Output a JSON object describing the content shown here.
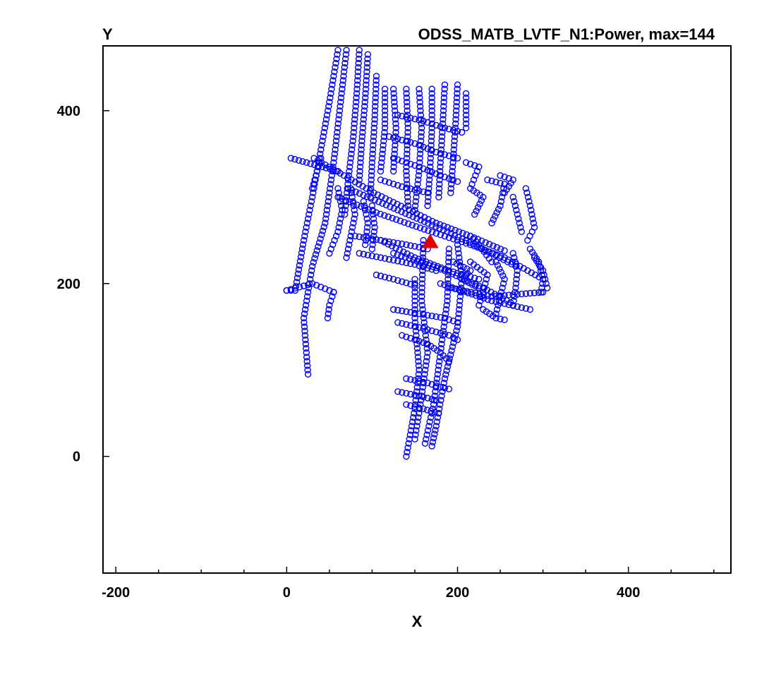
{
  "chart_data": {
    "type": "scatter",
    "title": "ODSS_MATB_LVTF_N1:Power, max=144",
    "xlabel": "X",
    "ylabel": "Y",
    "xlim": [
      -215,
      520
    ],
    "ylim": [
      -135,
      475
    ],
    "x_ticks": [
      {
        "value": -200,
        "label": "-200"
      },
      {
        "value": 0,
        "label": "0"
      },
      {
        "value": 200,
        "label": "200"
      },
      {
        "value": 400,
        "label": "400"
      }
    ],
    "y_ticks": [
      {
        "value": 0,
        "label": "0"
      },
      {
        "value": 200,
        "label": "200"
      },
      {
        "value": 400,
        "label": "400"
      }
    ],
    "x_minor_step": 50,
    "grid": false,
    "node_color": "#0000ff",
    "source_color": "#e00000",
    "source": {
      "name": "source",
      "x": 168,
      "y": 248
    },
    "series": [
      {
        "name": "nodes",
        "lines": [
          [
            [
              32,
              345
            ],
            [
              102,
              305
            ],
            [
              175,
              270
            ],
            [
              215,
              255
            ],
            [
              255,
              238
            ]
          ],
          [
            [
              60,
              300
            ],
            [
              105,
              282
            ],
            [
              175,
              258
            ],
            [
              215,
              245
            ],
            [
              255,
              230
            ],
            [
              300,
              205
            ]
          ],
          [
            [
              72,
              310
            ],
            [
              130,
              285
            ],
            [
              188,
              260
            ],
            [
              240,
              235
            ],
            [
              268,
              220
            ]
          ],
          [
            [
              180,
              200
            ],
            [
              240,
              180
            ],
            [
              285,
              170
            ]
          ],
          [
            [
              192,
              195
            ],
            [
              240,
              185
            ],
            [
              300,
              190
            ]
          ],
          [
            [
              200,
              245
            ],
            [
              205,
              205
            ],
            [
              200,
              150
            ],
            [
              185,
              90
            ],
            [
              175,
              35
            ],
            [
              170,
              12
            ]
          ],
          [
            [
              190,
              240
            ],
            [
              188,
              180
            ],
            [
              180,
              120
            ],
            [
              172,
              60
            ],
            [
              162,
              15
            ]
          ],
          [
            [
              150,
              205
            ],
            [
              150,
              160
            ],
            [
              155,
              100
            ],
            [
              150,
              55
            ],
            [
              140,
              0
            ]
          ],
          [
            [
              160,
              250
            ],
            [
              158,
              180
            ],
            [
              165,
              120
            ],
            [
              158,
              70
            ],
            [
              150,
              20
            ]
          ],
          [
            [
              125,
              235
            ],
            [
              185,
              215
            ],
            [
              230,
              195
            ],
            [
              262,
              178
            ]
          ],
          [
            [
              110,
              250
            ],
            [
              150,
              230
            ],
            [
              190,
              215
            ],
            [
              225,
              205
            ]
          ],
          [
            [
              70,
              470
            ],
            [
              62,
              400
            ],
            [
              55,
              340
            ],
            [
              45,
              270
            ],
            [
              30,
              220
            ],
            [
              20,
              160
            ],
            [
              25,
              95
            ]
          ],
          [
            [
              60,
              470
            ],
            [
              50,
              410
            ],
            [
              40,
              355
            ],
            [
              30,
              300
            ],
            [
              20,
              250
            ],
            [
              10,
              192
            ],
            [
              0,
              192
            ]
          ],
          [
            [
              85,
              470
            ],
            [
              82,
              420
            ],
            [
              78,
              370
            ],
            [
              72,
              320
            ],
            [
              68,
              280
            ]
          ],
          [
            [
              95,
              465
            ],
            [
              92,
              415
            ],
            [
              88,
              365
            ],
            [
              85,
              320
            ]
          ],
          [
            [
              105,
              440
            ],
            [
              103,
              390
            ],
            [
              100,
              340
            ],
            [
              98,
              300
            ]
          ],
          [
            [
              0,
              192
            ],
            [
              30,
              200
            ],
            [
              55,
              190
            ]
          ],
          [
            [
              40,
              345
            ],
            [
              30,
              310
            ]
          ],
          [
            [
              5,
              345
            ],
            [
              60,
              330
            ]
          ],
          [
            [
              60,
              310
            ],
            [
              65,
              285
            ],
            [
              60,
              260
            ],
            [
              50,
              235
            ]
          ],
          [
            [
              75,
              310
            ],
            [
              80,
              280
            ],
            [
              75,
              255
            ],
            [
              70,
              230
            ]
          ],
          [
            [
              90,
              295
            ],
            [
              95,
              270
            ],
            [
              92,
              245
            ]
          ],
          [
            [
              100,
              290
            ],
            [
              103,
              265
            ],
            [
              100,
              240
            ]
          ],
          [
            [
              115,
              425
            ],
            [
              115,
              380
            ],
            [
              110,
              330
            ]
          ],
          [
            [
              125,
              425
            ],
            [
              128,
              380
            ],
            [
              125,
              330
            ]
          ],
          [
            [
              140,
              425
            ],
            [
              142,
              380
            ],
            [
              140,
              330
            ],
            [
              142,
              290
            ]
          ],
          [
            [
              155,
              425
            ],
            [
              158,
              380
            ],
            [
              155,
              330
            ],
            [
              150,
              285
            ]
          ],
          [
            [
              170,
              425
            ],
            [
              170,
              380
            ],
            [
              168,
              335
            ],
            [
              165,
              290
            ]
          ],
          [
            [
              185,
              430
            ],
            [
              183,
              390
            ],
            [
              180,
              340
            ],
            [
              178,
              300
            ]
          ],
          [
            [
              200,
              430
            ],
            [
              198,
              390
            ],
            [
              195,
              345
            ],
            [
              192,
              305
            ]
          ],
          [
            [
              210,
              420
            ],
            [
              210,
              380
            ]
          ],
          [
            [
              120,
              370
            ],
            [
              150,
              362
            ],
            [
              175,
              352
            ],
            [
              200,
              345
            ]
          ],
          [
            [
              125,
              345
            ],
            [
              155,
              335
            ],
            [
              180,
              325
            ],
            [
              200,
              318
            ]
          ],
          [
            [
              110,
              320
            ],
            [
              135,
              312
            ],
            [
              165,
              305
            ]
          ],
          [
            [
              130,
              395
            ],
            [
              160,
              388
            ],
            [
              185,
              380
            ],
            [
              205,
              375
            ]
          ],
          [
            [
              210,
              340
            ],
            [
              225,
              335
            ],
            [
              215,
              310
            ],
            [
              230,
              300
            ],
            [
              220,
              280
            ]
          ],
          [
            [
              235,
              320
            ],
            [
              255,
              315
            ],
            [
              250,
              290
            ],
            [
              240,
              270
            ]
          ],
          [
            [
              265,
              300
            ],
            [
              270,
              280
            ],
            [
              275,
              260
            ]
          ],
          [
            [
              280,
              310
            ],
            [
              285,
              290
            ],
            [
              290,
              265
            ],
            [
              282,
              250
            ]
          ],
          [
            [
              250,
              325
            ],
            [
              265,
              320
            ],
            [
              255,
              305
            ]
          ],
          [
            [
              80,
              255
            ],
            [
              110,
              250
            ],
            [
              140,
              245
            ],
            [
              165,
              240
            ]
          ],
          [
            [
              85,
              235
            ],
            [
              120,
              228
            ],
            [
              150,
              222
            ],
            [
              175,
              215
            ]
          ],
          [
            [
              105,
              210
            ],
            [
              125,
              205
            ],
            [
              150,
              198
            ]
          ],
          [
            [
              125,
              170
            ],
            [
              155,
              165
            ],
            [
              185,
              160
            ],
            [
              200,
              155
            ]
          ],
          [
            [
              130,
              155
            ],
            [
              160,
              148
            ],
            [
              190,
              140
            ],
            [
              200,
              135
            ]
          ],
          [
            [
              135,
              140
            ],
            [
              165,
              130
            ],
            [
              180,
              120
            ],
            [
              190,
              110
            ]
          ],
          [
            [
              140,
              90
            ],
            [
              165,
              85
            ],
            [
              180,
              80
            ],
            [
              190,
              78
            ]
          ],
          [
            [
              130,
              75
            ],
            [
              155,
              70
            ],
            [
              175,
              65
            ]
          ],
          [
            [
              140,
              60
            ],
            [
              160,
              55
            ],
            [
              178,
              50
            ]
          ],
          [
            [
              215,
              225
            ],
            [
              235,
              210
            ],
            [
              230,
              190
            ],
            [
              225,
              175
            ]
          ],
          [
            [
              245,
              225
            ],
            [
              255,
              205
            ],
            [
              250,
              185
            ],
            [
              245,
              165
            ]
          ],
          [
            [
              265,
              235
            ],
            [
              270,
              215
            ],
            [
              268,
              195
            ],
            [
              265,
              175
            ]
          ],
          [
            [
              285,
              240
            ],
            [
              295,
              225
            ],
            [
              300,
              205
            ],
            [
              298,
              190
            ]
          ],
          [
            [
              290,
              230
            ],
            [
              300,
              215
            ],
            [
              305,
              195
            ]
          ],
          [
            [
              215,
              255
            ],
            [
              225,
              245
            ],
            [
              240,
              225
            ]
          ],
          [
            [
              195,
              225
            ],
            [
              215,
              215
            ],
            [
              205,
              205
            ],
            [
              225,
              195
            ]
          ],
          [
            [
              230,
              170
            ],
            [
              245,
              160
            ],
            [
              255,
              158
            ]
          ],
          [
            [
              55,
              190
            ],
            [
              50,
              175
            ],
            [
              48,
              160
            ]
          ]
        ]
      }
    ]
  }
}
